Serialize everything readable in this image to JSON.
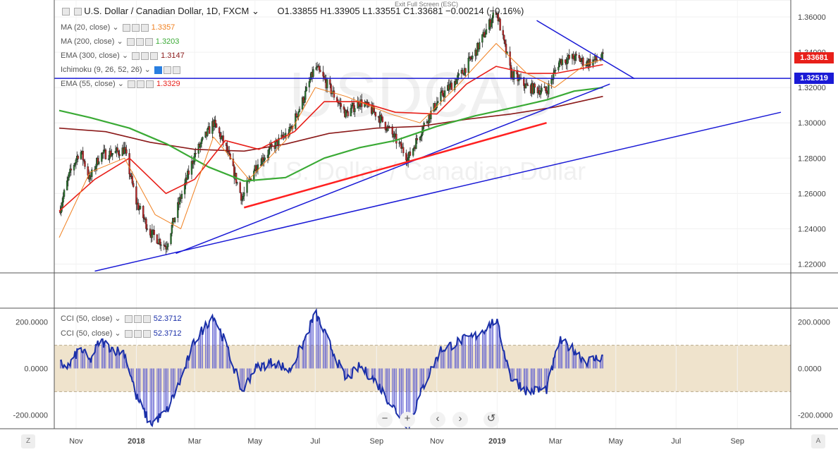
{
  "header": {
    "title": "U.S. Dollar / Canadian Dollar, 1D, FXCM",
    "ohlc": "O1.33855  H1.33905  L1.33551  C1.33681  −0.00214 (−0.16%)",
    "exit_label": "Exit Full Screen (ESC)"
  },
  "watermark": {
    "top": "USDCAD",
    "bottom": "U.S. Dollar / Canadian Dollar"
  },
  "indicators": [
    {
      "label": "MA (20, close)",
      "value": "1.3357",
      "color": "#f08020"
    },
    {
      "label": "MA (200, close)",
      "value": "1.3203",
      "color": "#3aaa35"
    },
    {
      "label": "EMA (300, close)",
      "value": "1.3147",
      "color": "#8b1a1a"
    },
    {
      "label": "Ichimoku (9, 26, 52, 26)",
      "value": "",
      "color": "#888888"
    },
    {
      "label": "EMA (55, close)",
      "value": "1.3329",
      "color": "#e8201a"
    }
  ],
  "cci_legend": [
    {
      "label": "CCI (50, close)",
      "value": "52.3712"
    },
    {
      "label": "CCI (50, close)",
      "value": "52.3712"
    }
  ],
  "price_labels": [
    {
      "text": "1.33681",
      "color": "#e8201a"
    },
    {
      "text": "1.32519",
      "color": "#1a1ad6"
    }
  ],
  "nav_buttons": [
    "−",
    "+",
    "‹",
    "›",
    "↺"
  ],
  "corner_left": "Z",
  "corner_right": "A",
  "colors": {
    "candle_up": "#2e7d32",
    "candle_down": "#c62828",
    "trend_blue": "#1a1ad6",
    "trend_red": "#ff2020",
    "cci": "#1a2fa8",
    "cci_band": "#efe3cc"
  },
  "chart_data": {
    "type": "candlestick",
    "title": "U.S. Dollar / Canadian Dollar, 1D, FXCM",
    "y_axis": {
      "ticks": [
        1.22,
        1.24,
        1.26,
        1.28,
        1.3,
        1.32,
        1.34,
        1.36
      ],
      "tick_labels": [
        "1.22000",
        "1.24000",
        "1.26000",
        "1.28000",
        "1.30000",
        "1.32000",
        "1.34000",
        "1.36000"
      ],
      "ylim": [
        1.215,
        1.368
      ]
    },
    "x_axis": {
      "labels": [
        "Nov",
        "2018",
        "Mar",
        "May",
        "Jul",
        "Sep",
        "Nov",
        "2019",
        "Mar",
        "May",
        "Jul",
        "Sep"
      ]
    },
    "close_path": [
      [
        "2017-10-15",
        1.25
      ],
      [
        "2017-10-25",
        1.27
      ],
      [
        "2017-11-05",
        1.285
      ],
      [
        "2017-11-15",
        1.268
      ],
      [
        "2017-11-25",
        1.282
      ],
      [
        "2017-12-10",
        1.283
      ],
      [
        "2017-12-20",
        1.285
      ],
      [
        "2018-01-01",
        1.255
      ],
      [
        "2018-01-15",
        1.238
      ],
      [
        "2018-01-31",
        1.23
      ],
      [
        "2018-02-15",
        1.258
      ],
      [
        "2018-03-01",
        1.282
      ],
      [
        "2018-03-20",
        1.3
      ],
      [
        "2018-04-01",
        1.287
      ],
      [
        "2018-04-18",
        1.257
      ],
      [
        "2018-05-01",
        1.275
      ],
      [
        "2018-05-20",
        1.287
      ],
      [
        "2018-06-05",
        1.295
      ],
      [
        "2018-06-20",
        1.315
      ],
      [
        "2018-07-01",
        1.332
      ],
      [
        "2018-07-15",
        1.32
      ],
      [
        "2018-08-01",
        1.305
      ],
      [
        "2018-08-15",
        1.312
      ],
      [
        "2018-09-01",
        1.305
      ],
      [
        "2018-09-15",
        1.295
      ],
      [
        "2018-10-03",
        1.28
      ],
      [
        "2018-10-20",
        1.3
      ],
      [
        "2018-11-05",
        1.315
      ],
      [
        "2018-11-25",
        1.327
      ],
      [
        "2018-12-10",
        1.34
      ],
      [
        "2018-12-31",
        1.364
      ],
      [
        "2019-01-15",
        1.328
      ],
      [
        "2019-02-01",
        1.32
      ],
      [
        "2019-02-20",
        1.318
      ],
      [
        "2019-03-05",
        1.335
      ],
      [
        "2019-03-20",
        1.337
      ],
      [
        "2019-04-01",
        1.334
      ],
      [
        "2019-04-18",
        1.337
      ]
    ],
    "ma20": [
      [
        "2017-10-15",
        1.235
      ],
      [
        "2017-11-15",
        1.272
      ],
      [
        "2017-12-20",
        1.28
      ],
      [
        "2018-01-20",
        1.248
      ],
      [
        "2018-02-15",
        1.24
      ],
      [
        "2018-03-20",
        1.292
      ],
      [
        "2018-04-25",
        1.268
      ],
      [
        "2018-06-01",
        1.29
      ],
      [
        "2018-07-01",
        1.32
      ],
      [
        "2018-08-01",
        1.315
      ],
      [
        "2018-09-15",
        1.305
      ],
      [
        "2018-10-15",
        1.3
      ],
      [
        "2018-11-20",
        1.32
      ],
      [
        "2018-12-31",
        1.345
      ],
      [
        "2019-01-31",
        1.328
      ],
      [
        "2019-02-28",
        1.32
      ],
      [
        "2019-03-31",
        1.333
      ],
      [
        "2019-04-18",
        1.336
      ]
    ],
    "ema55": [
      [
        "2017-10-15",
        1.25
      ],
      [
        "2017-11-20",
        1.268
      ],
      [
        "2017-12-25",
        1.28
      ],
      [
        "2018-01-31",
        1.26
      ],
      [
        "2018-03-01",
        1.268
      ],
      [
        "2018-04-01",
        1.29
      ],
      [
        "2018-05-05",
        1.285
      ],
      [
        "2018-06-10",
        1.295
      ],
      [
        "2018-07-10",
        1.312
      ],
      [
        "2018-08-15",
        1.312
      ],
      [
        "2018-09-20",
        1.306
      ],
      [
        "2018-11-01",
        1.305
      ],
      [
        "2018-12-01",
        1.322
      ],
      [
        "2018-12-31",
        1.332
      ],
      [
        "2019-02-01",
        1.328
      ],
      [
        "2019-03-01",
        1.328
      ],
      [
        "2019-04-18",
        1.333
      ]
    ],
    "ma200": [
      [
        "2017-10-15",
        1.307
      ],
      [
        "2017-11-15",
        1.303
      ],
      [
        "2017-12-25",
        1.297
      ],
      [
        "2018-02-01",
        1.288
      ],
      [
        "2018-03-15",
        1.275
      ],
      [
        "2018-04-20",
        1.267
      ],
      [
        "2018-06-01",
        1.269
      ],
      [
        "2018-07-10",
        1.28
      ],
      [
        "2018-08-15",
        1.286
      ],
      [
        "2018-09-20",
        1.29
      ],
      [
        "2018-11-01",
        1.298
      ],
      [
        "2018-12-10",
        1.304
      ],
      [
        "2019-01-20",
        1.309
      ],
      [
        "2019-02-20",
        1.313
      ],
      [
        "2019-03-20",
        1.318
      ],
      [
        "2019-04-18",
        1.32
      ]
    ],
    "ema300": [
      [
        "2017-10-15",
        1.297
      ],
      [
        "2017-12-01",
        1.295
      ],
      [
        "2018-01-15",
        1.289
      ],
      [
        "2018-03-01",
        1.285
      ],
      [
        "2018-04-20",
        1.284
      ],
      [
        "2018-06-01",
        1.288
      ],
      [
        "2018-07-15",
        1.294
      ],
      [
        "2018-09-01",
        1.297
      ],
      [
        "2018-10-15",
        1.298
      ],
      [
        "2018-12-01",
        1.302
      ],
      [
        "2019-01-15",
        1.305
      ],
      [
        "2019-03-01",
        1.309
      ],
      [
        "2019-04-18",
        1.315
      ]
    ],
    "horizontal_line": 1.32519,
    "trendlines": [
      {
        "color": "blue",
        "from": [
          "2018-02-10",
          1.226
        ],
        "to": [
          "2019-04-25",
          1.322
        ]
      },
      {
        "color": "blue",
        "from": [
          "2017-11-20",
          1.216
        ],
        "to": [
          "2019-10-15",
          1.306
        ]
      },
      {
        "color": "blue",
        "from": [
          "2019-02-10",
          1.358
        ],
        "to": [
          "2019-05-20",
          1.325
        ]
      },
      {
        "color": "red",
        "from": [
          "2018-04-20",
          1.252
        ],
        "to": [
          "2019-02-20",
          1.3
        ]
      }
    ],
    "cci": {
      "name": "CCI (50, close)",
      "y_ticks": [
        200,
        0,
        -200
      ],
      "tick_labels": [
        "200.0000",
        "0.0000",
        "-200.0000"
      ],
      "ylim": [
        -260,
        260
      ],
      "band": [
        -100,
        100
      ],
      "values": [
        [
          "2017-10-15",
          20
        ],
        [
          "2017-10-25",
          10
        ],
        [
          "2017-11-05",
          90
        ],
        [
          "2017-11-15",
          30
        ],
        [
          "2017-11-25",
          120
        ],
        [
          "2017-12-10",
          80
        ],
        [
          "2017-12-20",
          70
        ],
        [
          "2018-01-01",
          -120
        ],
        [
          "2018-01-15",
          -240
        ],
        [
          "2018-01-31",
          -190
        ],
        [
          "2018-02-15",
          -50
        ],
        [
          "2018-03-01",
          120
        ],
        [
          "2018-03-20",
          230
        ],
        [
          "2018-04-01",
          110
        ],
        [
          "2018-04-18",
          -100
        ],
        [
          "2018-05-01",
          0
        ],
        [
          "2018-05-20",
          30
        ],
        [
          "2018-06-05",
          -10
        ],
        [
          "2018-06-20",
          120
        ],
        [
          "2018-07-01",
          240
        ],
        [
          "2018-07-15",
          110
        ],
        [
          "2018-08-01",
          -50
        ],
        [
          "2018-08-15",
          10
        ],
        [
          "2018-09-01",
          -60
        ],
        [
          "2018-09-15",
          -150
        ],
        [
          "2018-10-03",
          -250
        ],
        [
          "2018-10-20",
          -60
        ],
        [
          "2018-11-05",
          80
        ],
        [
          "2018-11-25",
          120
        ],
        [
          "2018-12-10",
          140
        ],
        [
          "2018-12-31",
          210
        ],
        [
          "2019-01-15",
          -40
        ],
        [
          "2019-02-01",
          -100
        ],
        [
          "2019-02-20",
          -90
        ],
        [
          "2019-03-05",
          120
        ],
        [
          "2019-03-20",
          80
        ],
        [
          "2019-04-01",
          30
        ],
        [
          "2019-04-18",
          52.37
        ]
      ]
    }
  }
}
